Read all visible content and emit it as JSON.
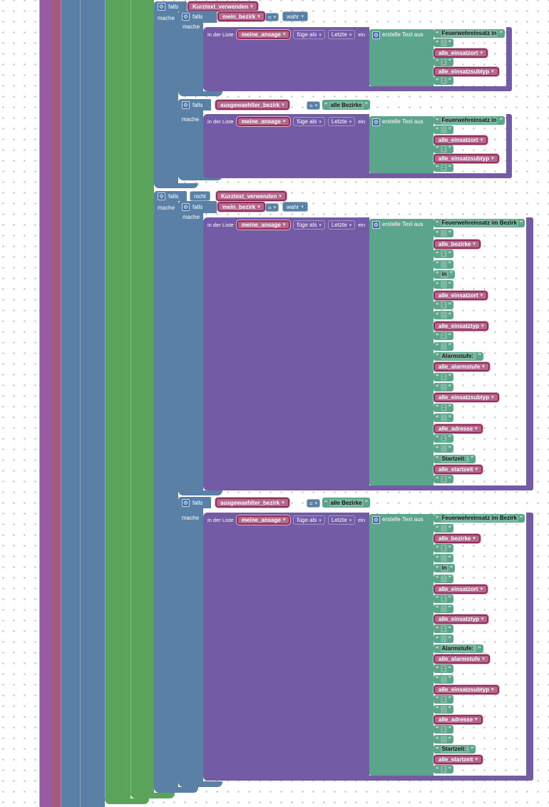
{
  "workspace": {
    "app": "Blockly visual programming canvas (German)",
    "colors": {
      "logic_blue": "#5b80a5",
      "list_purple": "#745ba5",
      "text_teal": "#5ba58c",
      "text_field_teal": "#7cb8a0",
      "variable_pink": "#b5688e",
      "variable_border": "#8f2e58",
      "procedure_violet": "#995ba5",
      "variable_stripe_mauve": "#a55b80",
      "loop_green": "#5aa35b",
      "workspace_dot": "#c9c9c9"
    }
  },
  "keywords": {
    "falls": "falls",
    "mache": "mache",
    "nicht": "nicht",
    "ein": "ein",
    "in_der_liste": "in der Liste",
    "fuege_als": "füge als",
    "letzte": "Letzte",
    "erstelle_text_aus": "erstelle Text aus",
    "eq": "=",
    "wahr": "wahr"
  },
  "variables": {
    "kurztext_verwenden": "Kurztext_verwenden",
    "mein_bezirk": "mein_bezirk",
    "ausgewaehlter_bezirk": "ausgewaehlter_bezirk",
    "meine_ansage": "meine_ansage"
  },
  "strings": {
    "alle_bezirke": "alle Bezirke"
  },
  "join_short": [
    {
      "t": "str",
      "v": "Feuerwehreinsatz in"
    },
    {
      "t": "str",
      "v": " "
    },
    {
      "t": "var",
      "v": "alle_einsatzort"
    },
    {
      "t": "str",
      "v": ":"
    },
    {
      "t": "var",
      "v": "alle_einsatzsubtyp"
    },
    {
      "t": "str",
      "v": ":"
    }
  ],
  "join_long": [
    {
      "t": "str",
      "v": "Feuerwehreinsatz im Bezirk"
    },
    {
      "t": "str",
      "v": " "
    },
    {
      "t": "var",
      "v": "alle_bezirke"
    },
    {
      "t": "str",
      "v": ":"
    },
    {
      "t": "str",
      "v": " "
    },
    {
      "t": "str",
      "v": "in"
    },
    {
      "t": "str",
      "v": " "
    },
    {
      "t": "var",
      "v": "alle_einsatzort"
    },
    {
      "t": "str",
      "v": ":"
    },
    {
      "t": "str",
      "v": " "
    },
    {
      "t": "var",
      "v": "alle_einsatztyp"
    },
    {
      "t": "str",
      "v": ":"
    },
    {
      "t": "str",
      "v": " "
    },
    {
      "t": "str",
      "v": "Alarmstufe: "
    },
    {
      "t": "var",
      "v": "alle_alarmstufe"
    },
    {
      "t": "str",
      "v": ":"
    },
    {
      "t": "str",
      "v": " "
    },
    {
      "t": "var",
      "v": "alle_einsatzsubtyp"
    },
    {
      "t": "str",
      "v": ":"
    },
    {
      "t": "str",
      "v": " "
    },
    {
      "t": "var",
      "v": "alle_adresse"
    },
    {
      "t": "str",
      "v": ":"
    },
    {
      "t": "str",
      "v": " "
    },
    {
      "t": "str",
      "v": "Startzeit: "
    },
    {
      "t": "var",
      "v": "alle_startzeit"
    },
    {
      "t": "str",
      "v": ":"
    }
  ]
}
